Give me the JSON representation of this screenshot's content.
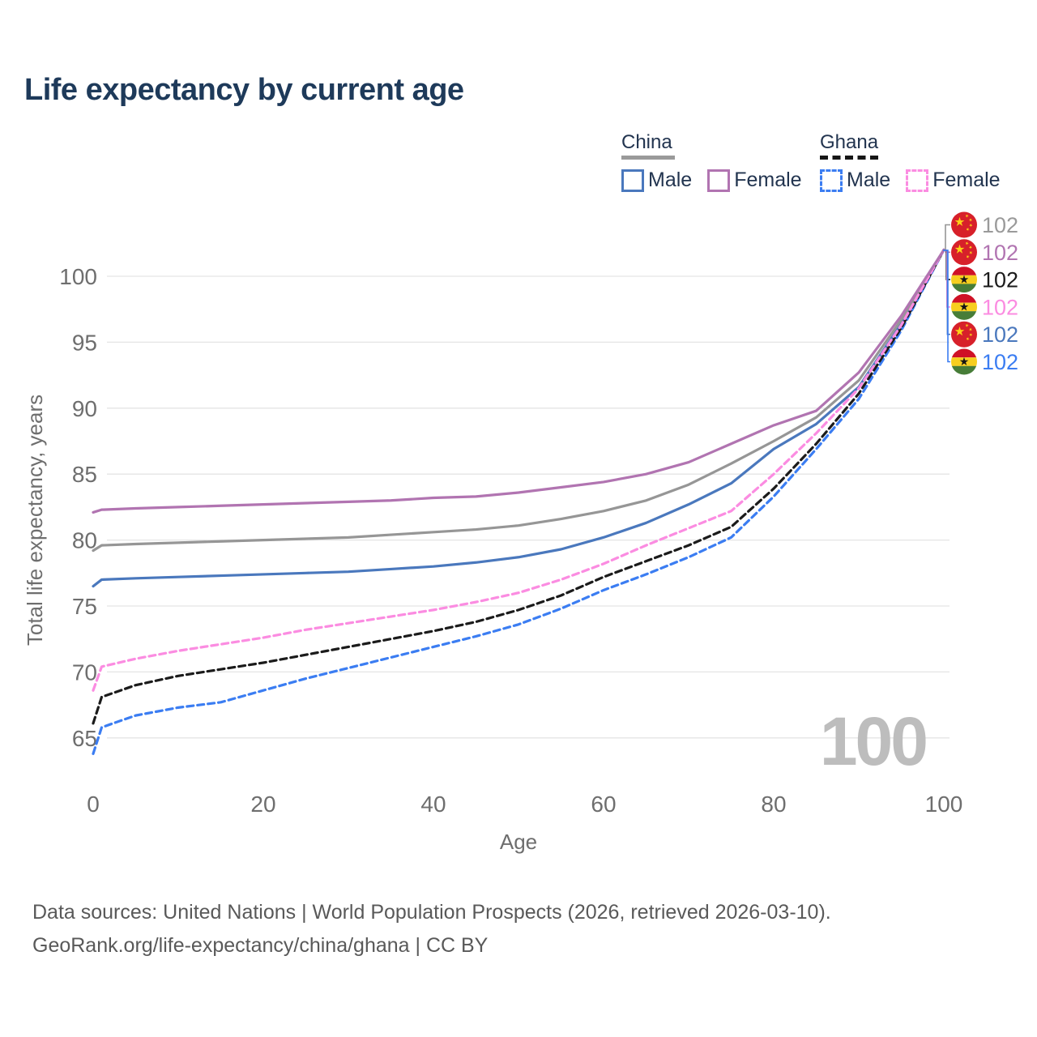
{
  "title": "Life expectancy by current age",
  "legend": {
    "groups": [
      {
        "label": "China",
        "underline_style": "solid",
        "underline_color": "#9a9a9a",
        "items": [
          {
            "label": "Male",
            "color": "#4a78bd",
            "dash": false
          },
          {
            "label": "Female",
            "color": "#b174b1",
            "dash": false
          }
        ]
      },
      {
        "label": "Ghana",
        "underline_style": "dashed",
        "underline_color": "#161616",
        "items": [
          {
            "label": "Male",
            "color": "#3b7df2",
            "dash": true
          },
          {
            "label": "Female",
            "color": "#fb8ce1",
            "dash": true
          }
        ]
      }
    ]
  },
  "chart_data": {
    "type": "line",
    "title": "Life expectancy by current age",
    "xlabel": "Age",
    "ylabel": "Total life expectancy, years",
    "watermark": "100",
    "xlim": [
      0,
      100
    ],
    "ylim": [
      62,
      103
    ],
    "xticks": [
      0,
      20,
      40,
      60,
      80,
      100
    ],
    "yticks": [
      65,
      70,
      75,
      80,
      85,
      90,
      95,
      100
    ],
    "grid": "horizontal",
    "legend_position": "top-right",
    "x": [
      0,
      1,
      5,
      10,
      15,
      20,
      25,
      30,
      35,
      40,
      45,
      50,
      55,
      60,
      65,
      70,
      75,
      80,
      85,
      90,
      95,
      100
    ],
    "series": [
      {
        "name": "China",
        "country": "China",
        "flag": "china",
        "color": "#969696",
        "dash": false,
        "end_label": "102",
        "label_color": "#9a9a9a",
        "values": [
          79.2,
          79.6,
          79.7,
          79.8,
          79.9,
          80.0,
          80.1,
          80.2,
          80.4,
          80.6,
          80.8,
          81.1,
          81.6,
          82.2,
          83.0,
          84.2,
          85.8,
          87.5,
          89.3,
          92.1,
          96.7,
          102
        ]
      },
      {
        "name": "China Female",
        "country": "China",
        "flag": "china",
        "color": "#b174b1",
        "dash": false,
        "end_label": "102",
        "label_color": "#b174b1",
        "values": [
          82.1,
          82.3,
          82.4,
          82.5,
          82.6,
          82.7,
          82.8,
          82.9,
          83.0,
          83.2,
          83.3,
          83.6,
          84.0,
          84.4,
          85.0,
          85.9,
          87.3,
          88.7,
          89.8,
          92.7,
          97.0,
          102
        ]
      },
      {
        "name": "Ghana",
        "country": "Ghana",
        "flag": "ghana",
        "color": "#1b1b1b",
        "dash": true,
        "end_label": "102",
        "label_color": "#1b1b1b",
        "values": [
          66.1,
          68.1,
          69.0,
          69.7,
          70.2,
          70.7,
          71.3,
          71.9,
          72.5,
          73.1,
          73.8,
          74.7,
          75.8,
          77.2,
          78.4,
          79.6,
          81.0,
          83.9,
          87.3,
          91.1,
          96.1,
          102
        ]
      },
      {
        "name": "Ghana Female",
        "country": "Ghana",
        "flag": "ghana",
        "color": "#fb8ce1",
        "dash": true,
        "end_label": "102",
        "label_color": "#fb8ce1",
        "values": [
          68.6,
          70.4,
          71.0,
          71.6,
          72.1,
          72.6,
          73.2,
          73.7,
          74.2,
          74.7,
          75.3,
          76.0,
          77.0,
          78.2,
          79.6,
          80.9,
          82.2,
          85.0,
          88.1,
          91.5,
          96.3,
          102
        ]
      },
      {
        "name": "China Male",
        "country": "China",
        "flag": "china",
        "color": "#4a78bd",
        "dash": false,
        "end_label": "102",
        "label_color": "#4a78bd",
        "values": [
          76.5,
          77.0,
          77.1,
          77.2,
          77.3,
          77.4,
          77.5,
          77.6,
          77.8,
          78.0,
          78.3,
          78.7,
          79.3,
          80.2,
          81.3,
          82.7,
          84.3,
          86.9,
          88.8,
          91.6,
          96.4,
          102
        ]
      },
      {
        "name": "Ghana Male",
        "country": "Ghana",
        "flag": "ghana",
        "color": "#3b7df2",
        "dash": true,
        "end_label": "102",
        "label_color": "#3b7df2",
        "values": [
          63.8,
          65.8,
          66.7,
          67.3,
          67.7,
          68.6,
          69.5,
          70.3,
          71.1,
          71.9,
          72.7,
          73.6,
          74.8,
          76.2,
          77.4,
          78.7,
          80.2,
          83.3,
          86.9,
          90.7,
          95.9,
          102
        ]
      }
    ]
  },
  "footer": {
    "line1": "Data sources: United Nations | World Population Prospects (2026, retrieved 2026-03-10).",
    "line2": "GeoRank.org/life-expectancy/china/ghana | CC BY"
  }
}
